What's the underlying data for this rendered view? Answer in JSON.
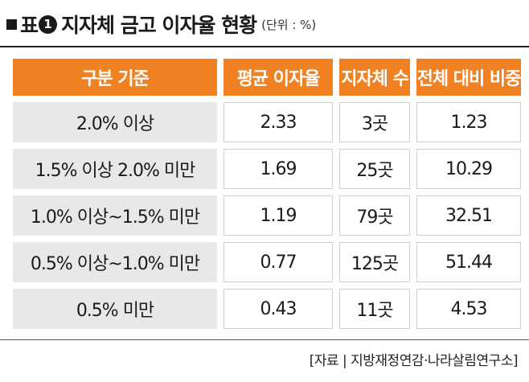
{
  "title": {
    "prefix": "표",
    "number": "1",
    "main": "지자체 금고 이자율 현황",
    "unit": "(단위 : %)"
  },
  "table": {
    "headers": [
      "구분 기준",
      "평균 이자율",
      "지자체 수",
      "전체 대비 비중"
    ],
    "rows": [
      [
        "2.0% 이상",
        "2.33",
        "3곳",
        "1.23"
      ],
      [
        "1.5% 이상 2.0% 미만",
        "1.69",
        "25곳",
        "10.29"
      ],
      [
        "1.0% 이상~1.5% 미만",
        "1.19",
        "79곳",
        "32.51"
      ],
      [
        "0.5% 이상~1.0% 미만",
        "0.77",
        "125곳",
        "51.44"
      ],
      [
        "0.5% 미만",
        "0.43",
        "11곳",
        "4.53"
      ]
    ]
  },
  "source": "[자료 | 지방재정연감·나라살림연구소]",
  "colors": {
    "header_bg": "#f08224",
    "label_bg": "#e8e8e8"
  }
}
